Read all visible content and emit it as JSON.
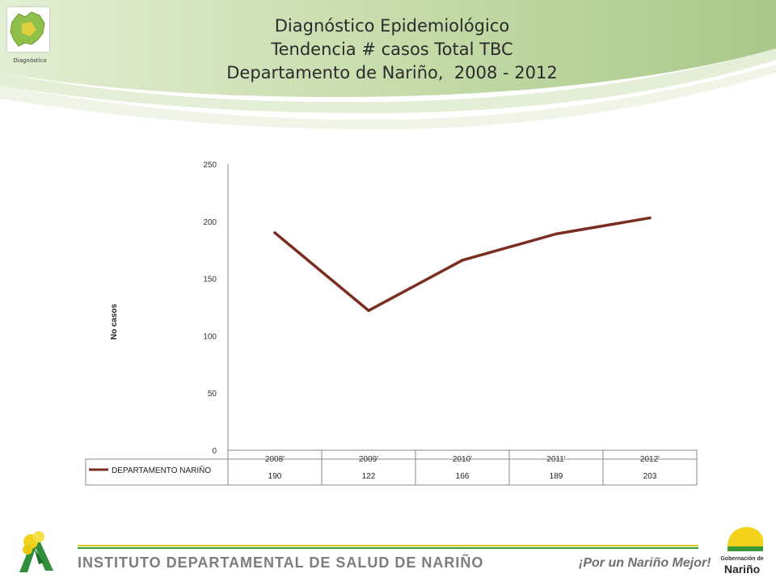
{
  "header": {
    "logo_caption": "Diagnóstico",
    "title_lines": [
      "Diagnóstico Epidemiológico",
      "Tendencia # casos Total TBC",
      "Departamento de Nariño,  2008 - 2012"
    ]
  },
  "footer": {
    "institute": "INSTITUTO DEPARTAMENTAL DE SALUD DE NARIÑO",
    "slogan": "¡Por un Nariño Mejor!",
    "gob_line1": "Gobernación de",
    "gob_line2": "Nariño"
  },
  "colors": {
    "line": "#7a2e1f",
    "green_light": "#cde0b0",
    "green_dark": "#3c9a3c",
    "yellow": "#f2d21a"
  },
  "chart_data": {
    "type": "line",
    "categories": [
      "2008'",
      "2009'",
      "2010'",
      "2011'",
      "2012'"
    ],
    "series": [
      {
        "name": "DEPARTAMENTO NARIÑO",
        "values": [
          190,
          122,
          166,
          189,
          203
        ]
      }
    ],
    "ylabel": "No casos",
    "ylim": [
      0,
      250
    ],
    "yticks": [
      0,
      50,
      100,
      150,
      200,
      250
    ],
    "grid": false,
    "legend": "data-table-below"
  }
}
